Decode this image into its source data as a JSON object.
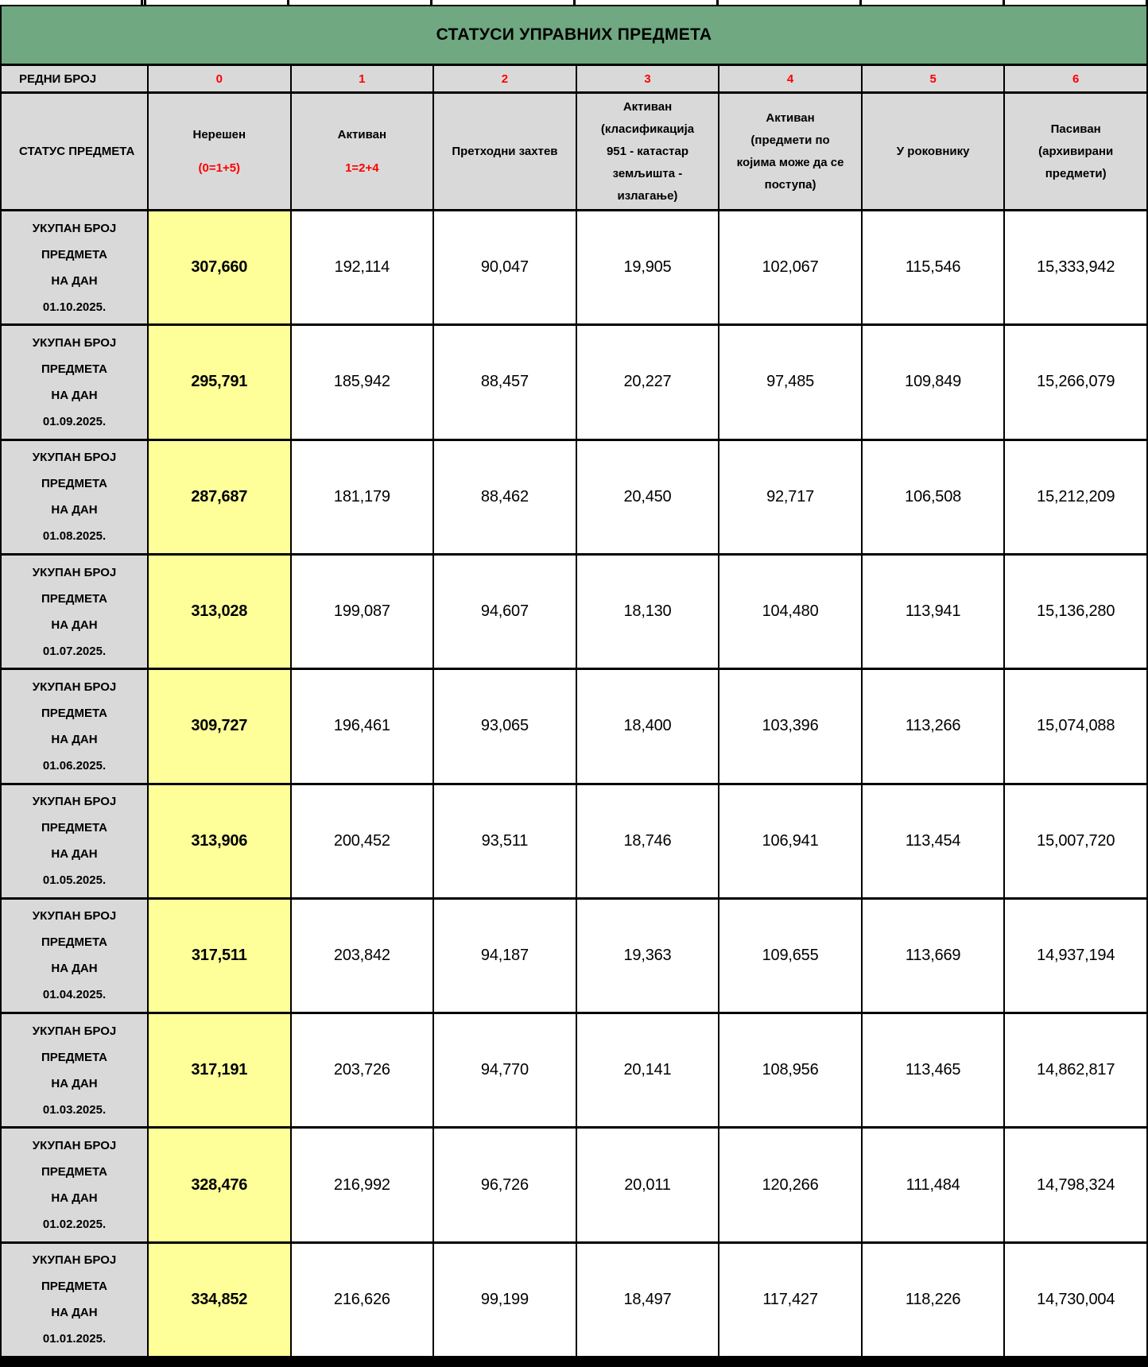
{
  "title": "СТАТУСИ УПРАВНИХ ПРЕДМЕТА",
  "colors": {
    "header_green": "#6fa881",
    "cell_grey": "#d9d9d9",
    "highlight_yellow": "#ffff99",
    "accent_red": "#ff0000",
    "border_black": "#000000"
  },
  "ordinal_row": {
    "label": "РЕДНИ БРОЈ",
    "numbers": [
      "0",
      "1",
      "2",
      "3",
      "4",
      "5",
      "6"
    ]
  },
  "status_row": {
    "label": "СТАТУС ПРЕДМЕТА",
    "columns": [
      {
        "main": "Нерешен",
        "sub": "(0=1+5)"
      },
      {
        "main": "Активан",
        "sub": "1=2+4"
      },
      {
        "main": "Претходни захтев",
        "sub": ""
      },
      {
        "main": "Активан\n(класификација\n951 - катастар\nземљишта -\nизлагање)",
        "sub": ""
      },
      {
        "main": "Активан\n(предмети по\nкојима може да се\nпоступа)",
        "sub": ""
      },
      {
        "main": "У роковнику",
        "sub": ""
      },
      {
        "main": "Пасиван\n(архивирани\nпредмети)",
        "sub": ""
      }
    ]
  },
  "rows": [
    {
      "label": "УКУПАН БРОЈ\nПРЕДМЕТА\nНА ДАН\n01.10.2025.",
      "values": [
        "307,660",
        "192,114",
        "90,047",
        "19,905",
        "102,067",
        "115,546",
        "15,333,942"
      ]
    },
    {
      "label": "УКУПАН БРОЈ\nПРЕДМЕТА\nНА ДАН\n01.09.2025.",
      "values": [
        "295,791",
        "185,942",
        "88,457",
        "20,227",
        "97,485",
        "109,849",
        "15,266,079"
      ]
    },
    {
      "label": "УКУПАН БРОЈ\nПРЕДМЕТА\nНА ДАН\n01.08.2025.",
      "values": [
        "287,687",
        "181,179",
        "88,462",
        "20,450",
        "92,717",
        "106,508",
        "15,212,209"
      ]
    },
    {
      "label": "УКУПАН БРОЈ\nПРЕДМЕТА\nНА ДАН\n01.07.2025.",
      "values": [
        "313,028",
        "199,087",
        "94,607",
        "18,130",
        "104,480",
        "113,941",
        "15,136,280"
      ]
    },
    {
      "label": "УКУПАН БРОЈ\nПРЕДМЕТА\nНА ДАН\n01.06.2025.",
      "values": [
        "309,727",
        "196,461",
        "93,065",
        "18,400",
        "103,396",
        "113,266",
        "15,074,088"
      ]
    },
    {
      "label": "УКУПАН БРОЈ\nПРЕДМЕТА\nНА ДАН\n01.05.2025.",
      "values": [
        "313,906",
        "200,452",
        "93,511",
        "18,746",
        "106,941",
        "113,454",
        "15,007,720"
      ]
    },
    {
      "label": "УКУПАН БРОЈ\nПРЕДМЕТА\nНА ДАН\n01.04.2025.",
      "values": [
        "317,511",
        "203,842",
        "94,187",
        "19,363",
        "109,655",
        "113,669",
        "14,937,194"
      ]
    },
    {
      "label": "УКУПАН БРОЈ\nПРЕДМЕТА\nНА ДАН\n01.03.2025.",
      "values": [
        "317,191",
        "203,726",
        "94,770",
        "20,141",
        "108,956",
        "113,465",
        "14,862,817"
      ]
    },
    {
      "label": "УКУПАН БРОЈ\nПРЕДМЕТА\nНА ДАН\n01.02.2025.",
      "values": [
        "328,476",
        "216,992",
        "96,726",
        "20,011",
        "120,266",
        "111,484",
        "14,798,324"
      ]
    },
    {
      "label": "УКУПАН БРОЈ\nПРЕДМЕТА\nНА ДАН\n01.01.2025.",
      "values": [
        "334,852",
        "216,626",
        "99,199",
        "18,497",
        "117,427",
        "118,226",
        "14,730,004"
      ]
    }
  ]
}
